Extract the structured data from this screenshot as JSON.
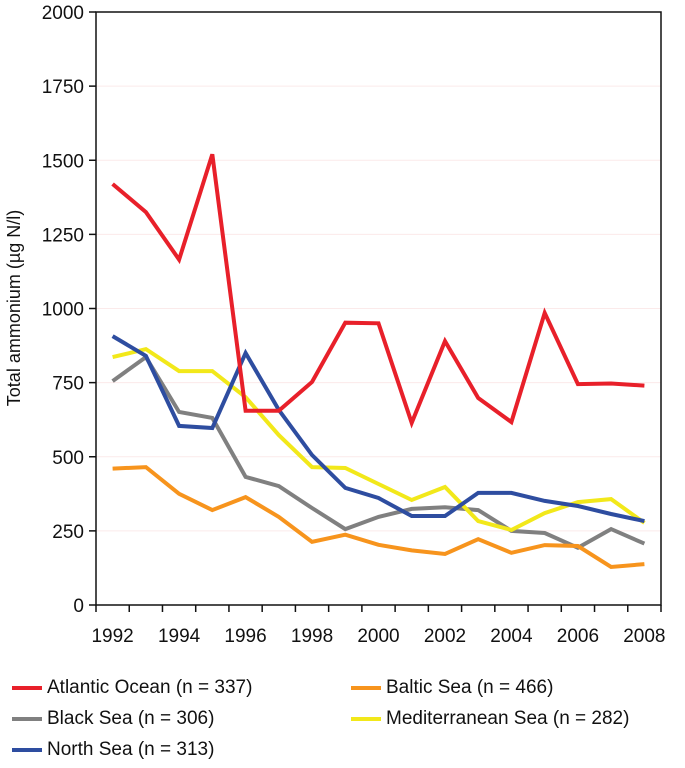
{
  "chart_data": {
    "type": "line",
    "title": "",
    "xlabel": "",
    "ylabel": "Total ammonium (µg N/l)",
    "ylim": [
      0,
      2000
    ],
    "yticks": [
      0,
      250,
      500,
      750,
      1000,
      1250,
      1500,
      1750,
      2000
    ],
    "ytick_labels": [
      "0",
      "250",
      "500",
      "750",
      "1000",
      "1250",
      "1500",
      "1750",
      "2000"
    ],
    "x": [
      1992,
      1993,
      1994,
      1995,
      1996,
      1997,
      1998,
      1999,
      2000,
      2001,
      2002,
      2003,
      2004,
      2005,
      2006,
      2007,
      2008
    ],
    "xtick_labels": [
      "1992",
      "1994",
      "1996",
      "1998",
      "2000",
      "2002",
      "2004",
      "2006",
      "2008"
    ],
    "grid": true,
    "legend_position": "bottom",
    "series": [
      {
        "name": "Atlantic Ocean (n = 337)",
        "color": "#e8202a",
        "values": [
          1420,
          1325,
          1165,
          1520,
          655,
          655,
          752,
          952,
          950,
          614,
          890,
          698,
          617,
          985,
          745,
          747,
          740
        ]
      },
      {
        "name": "Baltic Sea (n = 466)",
        "color": "#f7941d",
        "values": [
          460,
          465,
          375,
          320,
          364,
          297,
          213,
          237,
          203,
          184,
          172,
          222,
          176,
          202,
          199,
          128,
          138
        ]
      },
      {
        "name": "Black Sea (n = 306)",
        "color": "#808080",
        "values": [
          755,
          836,
          651,
          631,
          432,
          401,
          327,
          256,
          297,
          324,
          330,
          320,
          250,
          243,
          193,
          256,
          207
        ]
      },
      {
        "name": "Mediterranean Sea (n = 282)",
        "color": "#f2e81a",
        "values": [
          836,
          863,
          789,
          789,
          701,
          573,
          465,
          462,
          408,
          354,
          398,
          283,
          253,
          310,
          347,
          357,
          277
        ]
      },
      {
        "name": "North Sea (n = 313)",
        "color": "#2e4da0",
        "values": [
          907,
          840,
          604,
          597,
          850,
          658,
          506,
          395,
          361,
          300,
          300,
          378,
          378,
          351,
          334,
          307,
          283
        ]
      }
    ]
  },
  "legend": {
    "items": [
      {
        "label": "Atlantic Ocean (n = 337)",
        "color": "#e8202a"
      },
      {
        "label": "Baltic Sea (n = 466)",
        "color": "#f7941d"
      },
      {
        "label": "Black Sea (n = 306)",
        "color": "#808080"
      },
      {
        "label": "Mediterranean Sea (n = 282)",
        "color": "#f2e81a"
      },
      {
        "label": "North Sea (n = 313)",
        "color": "#2e4da0"
      }
    ]
  }
}
